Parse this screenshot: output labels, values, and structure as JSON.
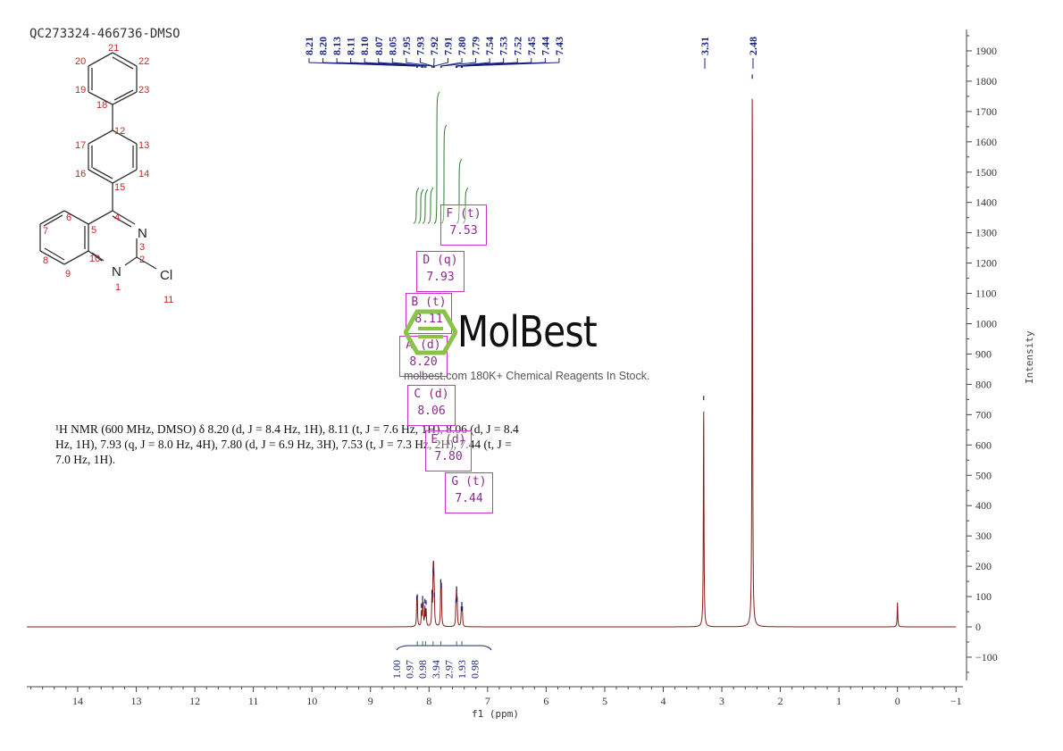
{
  "sample_id": "QC273324-466736-DMSO",
  "nmr_text": {
    "part1": "H NMR (600 MHz, DMSO) δ 8.20 (d, ",
    "sup": "1",
    "j": "J",
    "raw": [
      "¹H NMR (600 MHz, DMSO) δ 8.20 (d, J = 8.4 Hz, 1H), 8.11 (t, J = 7.6 Hz, 1H), 8.06 (d, J = 8.4",
      "Hz, 1H), 7.93 (q, J = 8.0 Hz, 4H), 7.80 (d, J = 6.9 Hz, 3H), 7.53 (t, J = 7.3 Hz, 2H), 7.44 (t, J =",
      "7.0 Hz, 1H)."
    ]
  },
  "watermark": {
    "brand": "MolBest",
    "tagline": "molbest.com 180K+ Chemical Reagents In Stock."
  },
  "axis_titles": {
    "x": "f1 (ppm)",
    "y": "Intensity"
  },
  "structure": {
    "atom_labels": [
      "21",
      "20",
      "22",
      "19",
      "23",
      "18",
      "12",
      "17",
      "13",
      "16",
      "14",
      "15",
      "6",
      "4",
      "N",
      "7",
      "5",
      "3",
      "8",
      "10",
      "2",
      "9",
      "N",
      "Cl",
      "1",
      "11"
    ]
  },
  "multiplet_boxes": [
    {
      "label": "F (t)",
      "value": "7.53"
    },
    {
      "label": "D (q)",
      "value": "7.93"
    },
    {
      "label": "B (t)",
      "value": "8.11"
    },
    {
      "label": "A (d)",
      "value": "8.20"
    },
    {
      "label": "C (d)",
      "value": "8.06"
    },
    {
      "label": "E (d)",
      "value": "7.80"
    },
    {
      "label": "G (t)",
      "value": "7.44"
    }
  ],
  "colors": {
    "spectrum": "#8b1a1a",
    "peak_labels": "#1a237e",
    "integral": "#2e7d32",
    "box": "#cc33cc",
    "structure": "#c62828",
    "logo_green": "#8bc34a"
  },
  "chart_data": {
    "type": "line",
    "title": "QC273324-466736-DMSO",
    "xlabel": "f1 (ppm)",
    "ylabel": "Intensity",
    "xlim": [
      15,
      -1
    ],
    "ylim": [
      -200,
      1950
    ],
    "x_ticks": [
      14,
      13,
      12,
      11,
      10,
      9,
      8,
      7,
      6,
      5,
      4,
      3,
      2,
      1,
      0,
      -1
    ],
    "y_ticks": [
      -100,
      0,
      100,
      200,
      300,
      400,
      500,
      600,
      700,
      800,
      900,
      1000,
      1100,
      1200,
      1300,
      1400,
      1500,
      1600,
      1700,
      1800,
      1900
    ],
    "y_tick_labels": [
      "−100",
      "0",
      "100",
      "200",
      "300",
      "400",
      "500",
      "600",
      "700",
      "800",
      "900",
      "1000",
      "1100",
      "1200",
      "1300",
      "1400",
      "1500",
      "1600",
      "1700",
      "1800",
      "1900"
    ],
    "x_tick_labels": [
      "14",
      "13",
      "12",
      "11",
      "10",
      "9",
      "8",
      "7",
      "6",
      "5",
      "4",
      "3",
      "2",
      "1",
      "0",
      "−1"
    ],
    "peak_labels": [
      "8.21",
      "8.20",
      "8.13",
      "8.11",
      "8.10",
      "8.07",
      "8.05",
      "7.95",
      "7.93",
      "7.92",
      "7.91",
      "7.80",
      "7.79",
      "7.54",
      "7.53",
      "7.52",
      "7.45",
      "7.44",
      "7.43",
      "3.31",
      "2.48"
    ],
    "peaks": [
      {
        "ppm": 8.21,
        "height": 70
      },
      {
        "ppm": 8.2,
        "height": 75
      },
      {
        "ppm": 8.13,
        "height": 45
      },
      {
        "ppm": 8.11,
        "height": 70
      },
      {
        "ppm": 8.1,
        "height": 50
      },
      {
        "ppm": 8.07,
        "height": 60
      },
      {
        "ppm": 8.05,
        "height": 55
      },
      {
        "ppm": 7.95,
        "height": 90
      },
      {
        "ppm": 7.93,
        "height": 160
      },
      {
        "ppm": 7.92,
        "height": 150
      },
      {
        "ppm": 7.91,
        "height": 80
      },
      {
        "ppm": 7.8,
        "height": 125
      },
      {
        "ppm": 7.79,
        "height": 110
      },
      {
        "ppm": 7.54,
        "height": 60
      },
      {
        "ppm": 7.53,
        "height": 100
      },
      {
        "ppm": 7.52,
        "height": 65
      },
      {
        "ppm": 7.45,
        "height": 35
      },
      {
        "ppm": 7.44,
        "height": 50
      },
      {
        "ppm": 7.43,
        "height": 35
      },
      {
        "ppm": 3.31,
        "height": 730
      },
      {
        "ppm": 2.48,
        "height": 1790
      },
      {
        "ppm": 0.0,
        "height": 80
      }
    ],
    "integrals": [
      {
        "value": "1.00",
        "ppm": 8.2
      },
      {
        "value": "0.97",
        "ppm": 8.11
      },
      {
        "value": "0.98",
        "ppm": 8.06
      },
      {
        "value": "3.94",
        "ppm": 7.93
      },
      {
        "value": "2.97",
        "ppm": 7.8
      },
      {
        "value": "1.93",
        "ppm": 7.53
      },
      {
        "value": "0.98",
        "ppm": 7.44
      }
    ],
    "grid": false,
    "legend": "none"
  }
}
